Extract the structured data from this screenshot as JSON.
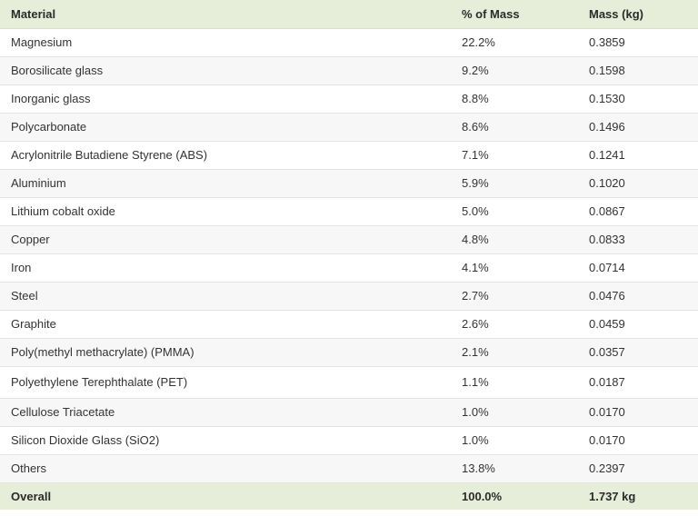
{
  "table": {
    "headers": [
      "Material",
      "% of Mass",
      "Mass (kg)"
    ],
    "rows": [
      [
        "Magnesium",
        "22.2%",
        "0.3859"
      ],
      [
        "Borosilicate glass",
        "9.2%",
        "0.1598"
      ],
      [
        "Inorganic glass",
        "8.8%",
        "0.1530"
      ],
      [
        "Polycarbonate",
        "8.6%",
        "0.1496"
      ],
      [
        "Acrylonitrile Butadiene Styrene (ABS)",
        "7.1%",
        "0.1241"
      ],
      [
        "Aluminium",
        "5.9%",
        "0.1020"
      ],
      [
        "Lithium cobalt oxide",
        "5.0%",
        "0.0867"
      ],
      [
        "Copper",
        "4.8%",
        "0.0833"
      ],
      [
        "Iron",
        "4.1%",
        "0.0714"
      ],
      [
        "Steel",
        "2.7%",
        "0.0476"
      ],
      [
        "Graphite",
        "2.6%",
        "0.0459"
      ],
      [
        "Poly(methyl methacrylate) (PMMA)",
        "2.1%",
        "0.0357"
      ],
      [
        "Polyethylene Terephthalate (PET)",
        "1.1%",
        "0.0187"
      ],
      [
        "Cellulose Triacetate",
        "1.0%",
        "0.0170"
      ],
      [
        "Silicon Dioxide Glass (SiO2)",
        "1.0%",
        "0.0170"
      ],
      [
        "Others",
        "13.8%",
        "0.2397"
      ]
    ],
    "footer": [
      "Overall",
      "100.0%",
      "1.737 kg"
    ]
  }
}
